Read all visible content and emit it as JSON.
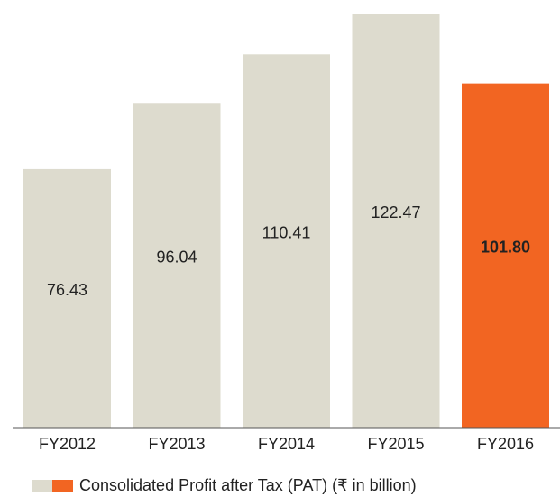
{
  "chart_data": {
    "type": "bar",
    "categories": [
      "FY2012",
      "FY2013",
      "FY2014",
      "FY2015",
      "FY2016"
    ],
    "values": [
      76.43,
      96.04,
      110.41,
      122.47,
      101.8
    ],
    "value_labels": [
      "76.43",
      "96.04",
      "110.41",
      "122.47",
      "101.80"
    ],
    "colors": [
      "#dddbce",
      "#dddbce",
      "#dddbce",
      "#dddbce",
      "#f26522"
    ],
    "value_label_colors": [
      "#333333",
      "#333333",
      "#333333",
      "#333333",
      "#ffffff"
    ],
    "legend": "Consolidated Profit after Tax (PAT) (₹ in billion)"
  }
}
